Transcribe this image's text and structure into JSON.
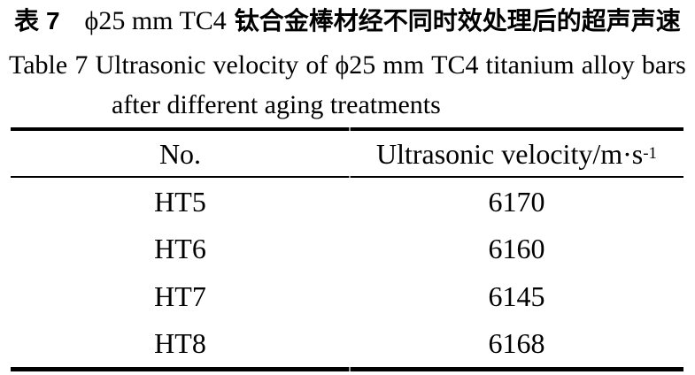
{
  "colors": {
    "background": "#ffffff",
    "text": "#000000",
    "rule": "#000000",
    "rule_tick": "#9a9a9a"
  },
  "caption": {
    "zh_label": "表 7",
    "zh_spec": "ϕ25 mm TC4",
    "zh_text": "钛合金棒材经不同时效处理后的超声声速",
    "en_line1": "Table 7 Ultrasonic velocity of ϕ25 mm TC4 titanium alloy bars",
    "en_line2": "after different aging treatments"
  },
  "table": {
    "header_no": "No.",
    "header_velocity_main": "Ultrasonic velocity/m·s",
    "header_velocity_sup": "-1",
    "rows": [
      {
        "no": "HT5",
        "velocity": "6170"
      },
      {
        "no": "HT6",
        "velocity": "6160"
      },
      {
        "no": "HT7",
        "velocity": "6145"
      },
      {
        "no": "HT8",
        "velocity": "6168"
      }
    ]
  },
  "chart_data": {
    "type": "table",
    "title_zh": "表 7 ϕ25 mm TC4 钛合金棒材经不同时效处理后的超声声速",
    "title_en": "Table 7 Ultrasonic velocity of ϕ25 mm TC4 titanium alloy bars after different aging treatments",
    "columns": [
      "No.",
      "Ultrasonic velocity/m·s⁻¹"
    ],
    "categories": [
      "HT5",
      "HT6",
      "HT7",
      "HT8"
    ],
    "values": [
      6170,
      6160,
      6145,
      6168
    ],
    "unit": "m·s⁻¹"
  }
}
